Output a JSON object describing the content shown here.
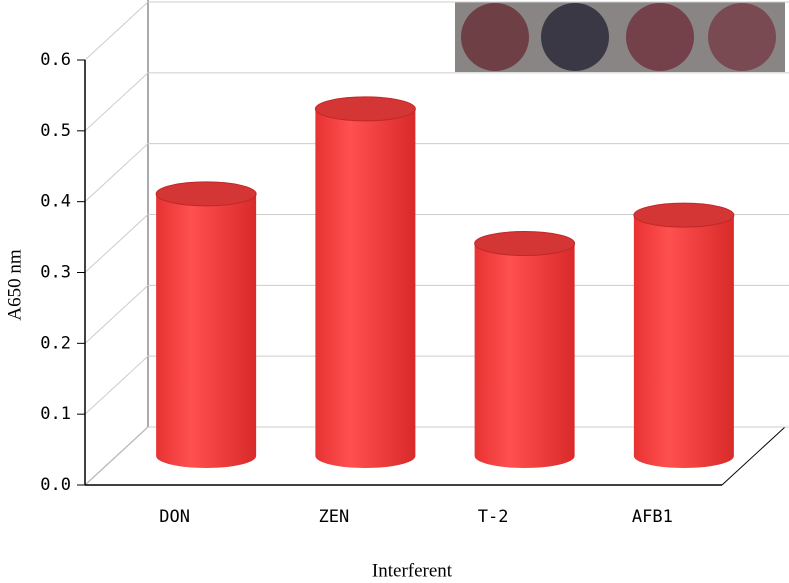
{
  "chart_data": {
    "type": "bar3d",
    "x_label": "Interferent",
    "y_label": "A650 nm",
    "categories": [
      "DON",
      "ZEN",
      "T-2",
      "AFB1"
    ],
    "values": [
      0.37,
      0.49,
      0.3,
      0.34
    ],
    "color": "#f04040",
    "ylim": [
      0,
      0.6
    ],
    "yticks": [
      {
        "value": 0,
        "label": "0.0"
      },
      0.1,
      0.2,
      0.3,
      0.4,
      0.5,
      0.6
    ],
    "grid": true
  }
}
